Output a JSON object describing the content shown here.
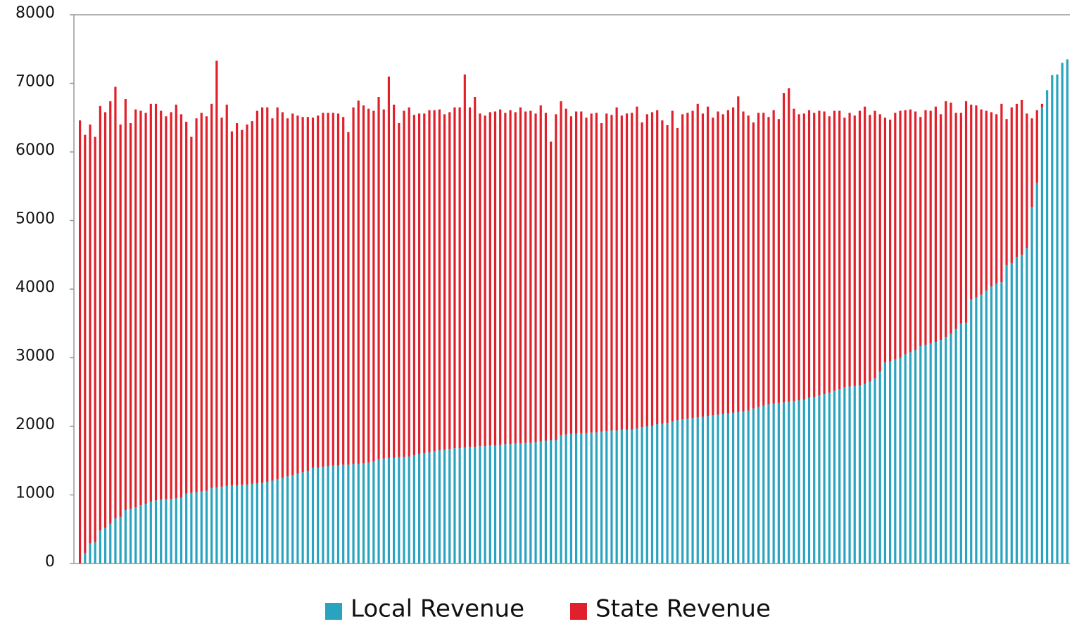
{
  "chart_data": {
    "type": "stacked_bar",
    "series": [
      {
        "name": "Local Revenue",
        "color": "#29a3bf",
        "values": [
          0,
          150,
          290,
          310,
          480,
          520,
          580,
          660,
          680,
          780,
          800,
          820,
          850,
          870,
          900,
          920,
          930,
          940,
          940,
          950,
          960,
          1020,
          1030,
          1040,
          1050,
          1060,
          1100,
          1110,
          1120,
          1130,
          1140,
          1140,
          1150,
          1150,
          1160,
          1170,
          1180,
          1190,
          1210,
          1230,
          1250,
          1270,
          1290,
          1310,
          1330,
          1350,
          1400,
          1400,
          1410,
          1420,
          1430,
          1430,
          1440,
          1440,
          1450,
          1450,
          1460,
          1470,
          1490,
          1520,
          1530,
          1540,
          1540,
          1550,
          1550,
          1560,
          1580,
          1600,
          1610,
          1620,
          1640,
          1650,
          1660,
          1670,
          1680,
          1680,
          1690,
          1700,
          1700,
          1710,
          1710,
          1720,
          1720,
          1730,
          1740,
          1740,
          1750,
          1750,
          1760,
          1760,
          1770,
          1780,
          1790,
          1800,
          1800,
          1870,
          1880,
          1890,
          1890,
          1900,
          1900,
          1910,
          1910,
          1920,
          1930,
          1940,
          1940,
          1950,
          1950,
          1950,
          1970,
          1990,
          2000,
          2010,
          2030,
          2040,
          2050,
          2070,
          2090,
          2100,
          2110,
          2120,
          2130,
          2140,
          2150,
          2160,
          2170,
          2180,
          2190,
          2200,
          2210,
          2220,
          2230,
          2260,
          2280,
          2300,
          2320,
          2330,
          2340,
          2350,
          2360,
          2370,
          2380,
          2390,
          2420,
          2430,
          2450,
          2470,
          2490,
          2520,
          2540,
          2570,
          2580,
          2590,
          2600,
          2620,
          2650,
          2700,
          2800,
          2930,
          2950,
          2980,
          3000,
          3050,
          3080,
          3110,
          3170,
          3190,
          3210,
          3230,
          3260,
          3300,
          3350,
          3420,
          3500,
          3510,
          3850,
          3880,
          3920,
          3980,
          4040,
          4080,
          4100,
          4350,
          4380,
          4470,
          4500,
          4600,
          5200,
          5550,
          6650,
          6900,
          7120,
          7130,
          7300,
          7350
        ]
      },
      {
        "name": "State Revenue",
        "color": "#e0202a",
        "values": [
          6460,
          6100,
          6110,
          5910,
          6190,
          6060,
          6160,
          6290,
          5720,
          5990,
          5620,
          5800,
          5750,
          5700,
          5800,
          5780,
          5670,
          5580,
          5640,
          5740,
          5590,
          5420,
          5190,
          5450,
          5520,
          5460,
          5600,
          6220,
          5380,
          5560,
          5160,
          5280,
          5170,
          5250,
          5290,
          5430,
          5470,
          5460,
          5280,
          5420,
          5330,
          5220,
          5270,
          5220,
          5180,
          5160,
          5100,
          5130,
          5160,
          5150,
          5140,
          5130,
          5070,
          4850,
          5200,
          5300,
          5220,
          5160,
          5110,
          5280,
          5090,
          5560,
          5150,
          4870,
          5050,
          5090,
          4960,
          4960,
          4950,
          4990,
          4970,
          4970,
          4890,
          4910,
          4970,
          4970,
          5440,
          4950,
          5100,
          4850,
          4820,
          4860,
          4870,
          4890,
          4830,
          4870,
          4830,
          4900,
          4830,
          4840,
          4790,
          4900,
          4780,
          4350,
          4750,
          4870,
          4750,
          4630,
          4700,
          4690,
          4600,
          4650,
          4660,
          4500,
          4630,
          4600,
          4710,
          4580,
          4610,
          4620,
          4690,
          4440,
          4550,
          4570,
          4580,
          4420,
          4340,
          4530,
          4260,
          4450,
          4460,
          4480,
          4570,
          4420,
          4510,
          4340,
          4420,
          4370,
          4420,
          4450,
          4600,
          4370,
          4300,
          4170,
          4290,
          4270,
          4190,
          4280,
          4140,
          4510,
          4570,
          4260,
          4170,
          4170,
          4190,
          4140,
          4150,
          4120,
          4030,
          4080,
          4060,
          3930,
          3990,
          3940,
          4000,
          4040,
          3890,
          3900,
          3750,
          3570,
          3520,
          3590,
          3600,
          3560,
          3540,
          3480,
          3340,
          3420,
          3390,
          3430,
          3290,
          3440,
          3370,
          3150,
          3070,
          3230,
          2840,
          2800,
          2700,
          2620,
          2540,
          2470,
          2600,
          2130,
          2270,
          2230,
          2260,
          1960,
          1290,
          1060,
          50,
          0,
          0,
          0,
          0,
          0
        ]
      }
    ],
    "ylim": [
      0,
      8000
    ],
    "yticks": [
      0,
      1000,
      2000,
      3000,
      4000,
      5000,
      6000,
      7000,
      8000
    ],
    "legend": "bottom"
  }
}
